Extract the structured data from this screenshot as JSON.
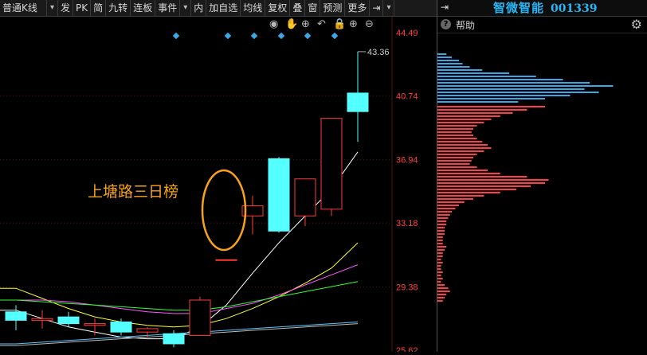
{
  "toolbar": {
    "items": [
      "普通K线",
      "▾",
      "发",
      "PK",
      "简",
      "九转",
      "连板",
      "事件",
      "▾",
      "内",
      "加自选",
      "均线",
      "复权",
      "叠",
      "窗",
      "预测",
      "更多",
      "⇥",
      "▾"
    ]
  },
  "chart": {
    "price_labels": [
      "44.49",
      "40.74",
      "36.94",
      "33.18",
      "29.38",
      "25.62"
    ],
    "high_label": "43.36",
    "annotation": "上塘路三日榜",
    "icons": [
      "eye-icon",
      "hand-icon",
      "zoom-icon",
      "undo-icon",
      "lock-icon",
      "zoom-in-icon",
      "zoom-out-icon"
    ],
    "colors": {
      "up": "#ff3b3b",
      "down": "#54ffff",
      "annotation": "#f7a21b",
      "grid": "#5a1010"
    }
  },
  "chart_data": {
    "type": "candlestick",
    "ylim": [
      25.62,
      44.49
    ],
    "candles": [
      {
        "open": 27.9,
        "close": 27.4,
        "high": 28.3,
        "low": 26.8
      },
      {
        "open": 27.4,
        "close": 27.5,
        "high": 28.0,
        "low": 26.9
      },
      {
        "open": 27.6,
        "close": 27.2,
        "high": 27.9,
        "low": 27.0
      },
      {
        "open": 27.1,
        "close": 27.2,
        "high": 27.5,
        "low": 26.5
      },
      {
        "open": 27.3,
        "close": 26.7,
        "high": 27.5,
        "low": 26.5
      },
      {
        "open": 26.7,
        "close": 26.9,
        "high": 27.0,
        "low": 26.4
      },
      {
        "open": 26.6,
        "close": 26.0,
        "high": 26.8,
        "low": 25.8
      },
      {
        "open": 26.5,
        "close": 28.6,
        "high": 28.8,
        "low": 26.5
      },
      {
        "open": 31.0,
        "close": 31.0,
        "high": 31.0,
        "low": 31.0
      },
      {
        "open": 33.6,
        "close": 34.2,
        "high": 34.8,
        "low": 32.5
      },
      {
        "open": 37.0,
        "close": 32.7,
        "high": 37.1,
        "low": 32.6
      },
      {
        "open": 33.6,
        "close": 35.8,
        "high": 35.8,
        "low": 33.0
      },
      {
        "open": 34.0,
        "close": 39.4,
        "high": 39.4,
        "low": 33.6
      },
      {
        "open": 40.9,
        "close": 39.8,
        "high": 43.36,
        "low": 38.0
      }
    ],
    "moving_averages": [
      {
        "color": "#ffffff",
        "values": [
          28.0,
          27.5,
          27.0,
          26.7,
          26.4,
          26.3,
          26.3,
          27.0,
          28.3,
          30.2,
          32.0,
          33.6,
          35.2,
          37.4
        ]
      },
      {
        "color": "#ffff33",
        "values": [
          29.3,
          28.7,
          28.1,
          27.6,
          27.3,
          27.1,
          27.0,
          27.1,
          27.5,
          28.1,
          28.8,
          29.6,
          30.5,
          32.0
        ]
      },
      {
        "color": "#ff55ff",
        "values": [
          28.6,
          28.6,
          28.5,
          28.3,
          28.1,
          27.9,
          27.8,
          27.8,
          28.1,
          28.4,
          28.9,
          29.5,
          30.1,
          30.7
        ]
      },
      {
        "color": "#33ff33",
        "values": [
          28.6,
          28.5,
          28.4,
          28.3,
          28.2,
          28.1,
          28.0,
          28.0,
          28.2,
          28.5,
          28.8,
          29.1,
          29.4,
          29.7
        ]
      },
      {
        "color": "#55c8ff",
        "values": [
          26.0,
          26.1,
          26.2,
          26.3,
          26.4,
          26.5,
          26.6,
          26.7,
          26.8,
          26.9,
          27.0,
          27.1,
          27.2,
          27.3
        ]
      },
      {
        "color": "#bbbbbb",
        "values": [
          25.9,
          26.0,
          26.1,
          26.2,
          26.3,
          26.4,
          26.5,
          26.6,
          26.7,
          26.8,
          26.9,
          27.0,
          27.1,
          27.2
        ]
      }
    ]
  },
  "panel": {
    "stock_name": "智微智能",
    "stock_code": "001339",
    "help_label": "帮助"
  },
  "profile_data": {
    "colors": {
      "above": "#3aa8e8",
      "below": "#ff4040"
    },
    "above": [
      0.05,
      0.08,
      0.12,
      0.14,
      0.18,
      0.25,
      0.4,
      0.55,
      0.7,
      0.85,
      0.98,
      0.82,
      0.9,
      0.74,
      0.6,
      0.45
    ],
    "below": [
      0.6,
      0.5,
      0.42,
      0.35,
      0.3,
      0.26,
      0.22,
      0.2,
      0.19,
      0.2,
      0.22,
      0.25,
      0.28,
      0.3,
      0.26,
      0.22,
      0.2,
      0.19,
      0.18,
      0.22,
      0.28,
      0.35,
      0.5,
      0.62,
      0.6,
      0.52,
      0.44,
      0.35,
      0.26,
      0.2,
      0.15,
      0.12,
      0.1,
      0.08,
      0.07,
      0.06,
      0.05,
      0.05,
      0.04,
      0.04,
      0.04,
      0.03,
      0.03,
      0.03,
      0.05,
      0.04,
      0.03,
      0.03,
      0.02,
      0.03,
      0.02,
      0.02,
      0.03,
      0.02,
      0.03,
      0.02,
      0.04,
      0.06,
      0.07,
      0.05,
      0.04,
      0.03
    ]
  }
}
